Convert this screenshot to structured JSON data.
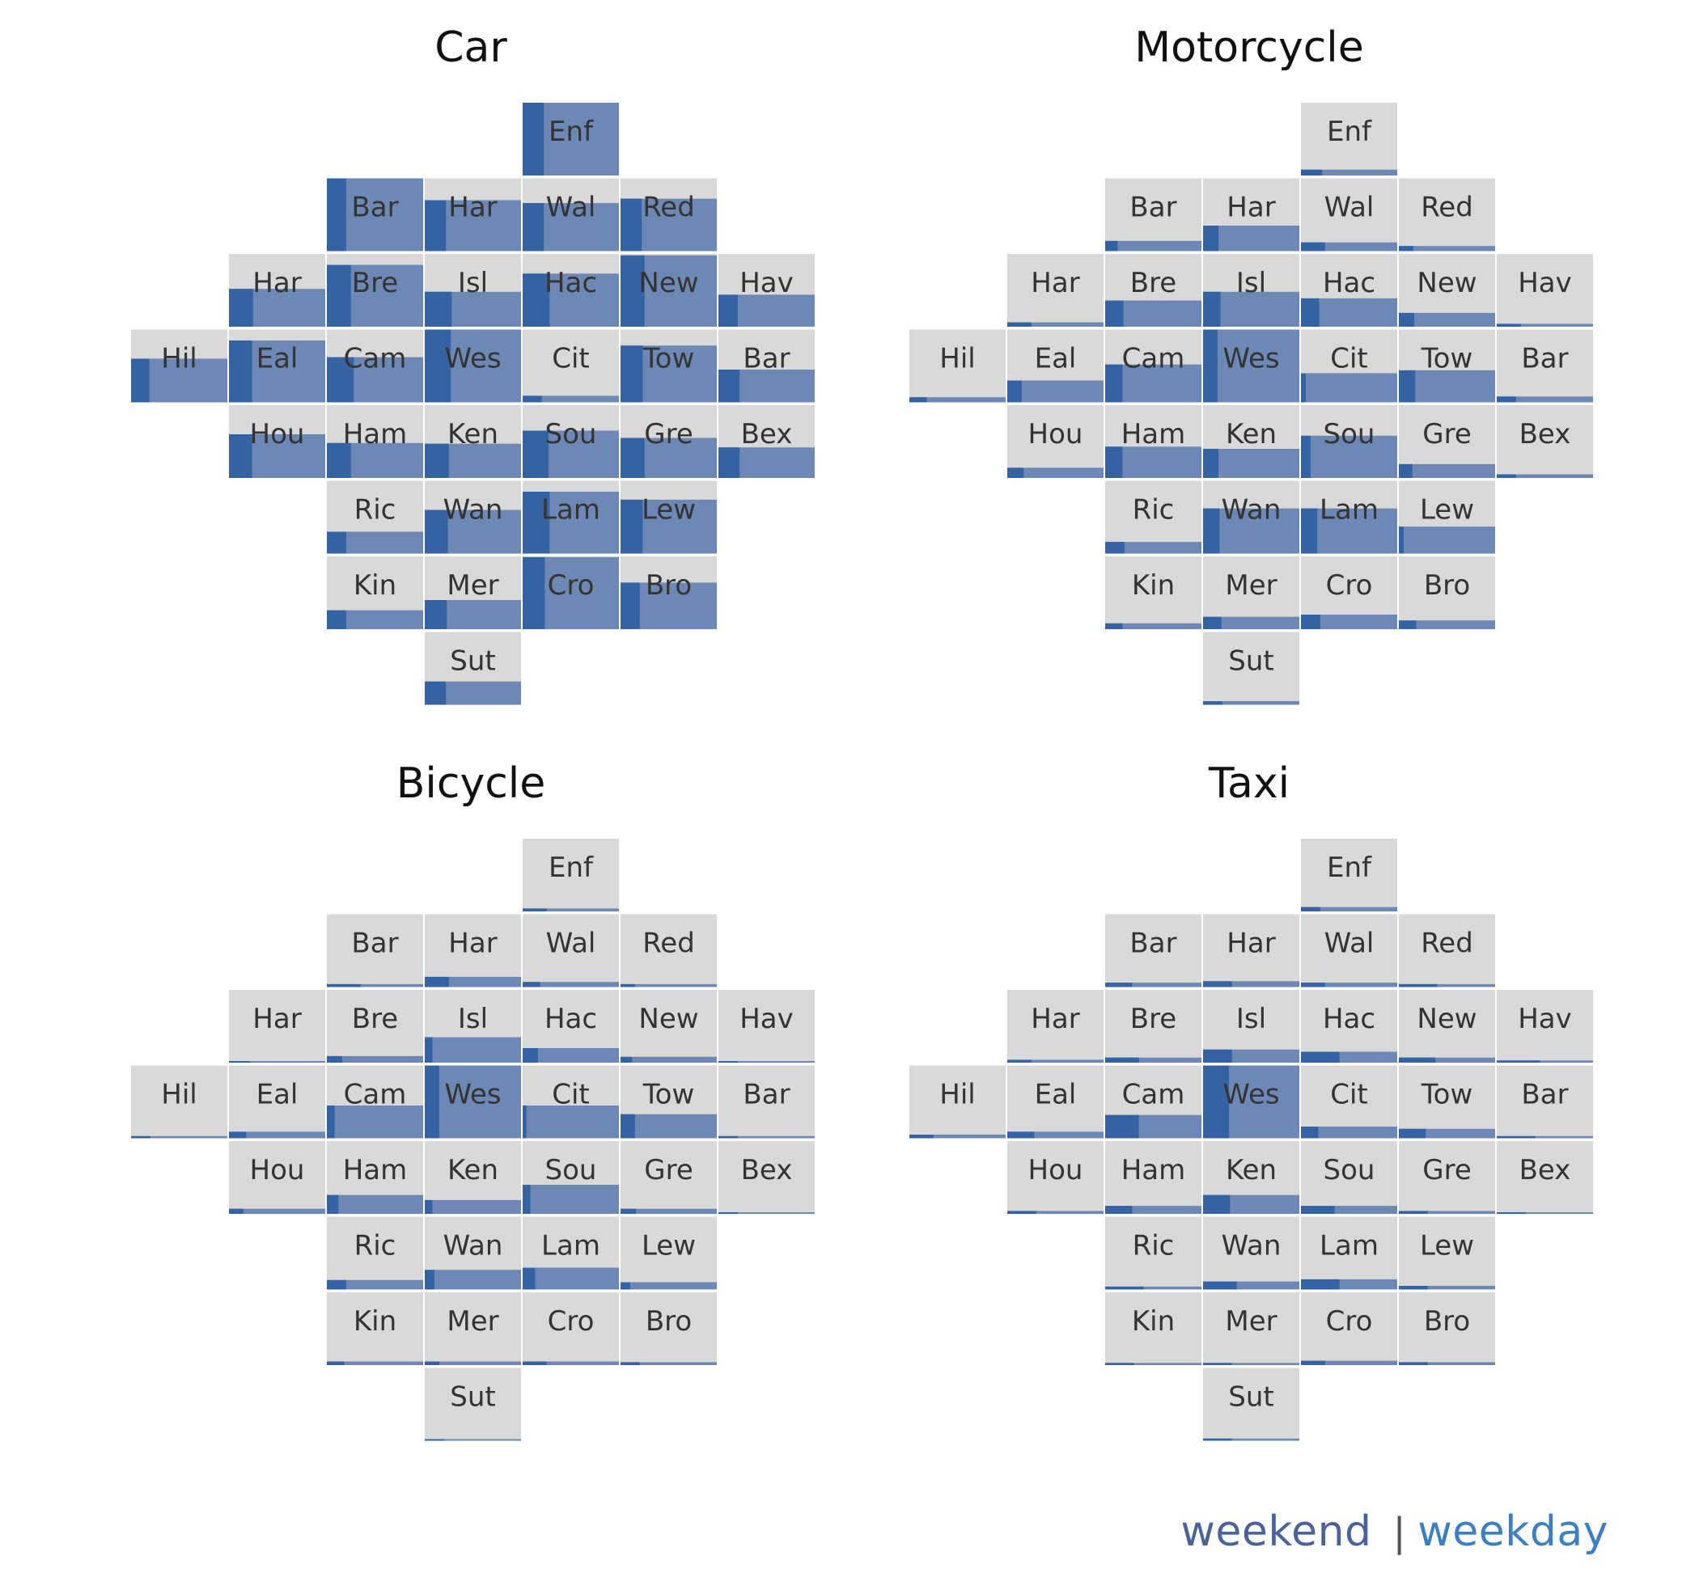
{
  "legend": {
    "weekend": "weekend",
    "separator": "|",
    "weekday": "weekday"
  },
  "colors": {
    "tile_bg": "#d9d9d9",
    "weekend": "#3562a3",
    "weekday": "#6d88b4",
    "label": "#333333"
  },
  "chart_data": [
    {
      "type": "heatmap",
      "title": "Car",
      "value_scale": "values are fraction of the tile filled (height); weekend share is fraction of filled width",
      "tiles": [
        {
          "label": "Enf",
          "col": 5,
          "row": 1,
          "value": 1.0,
          "weekend": 0.22
        },
        {
          "label": "Bar",
          "col": 3,
          "row": 2,
          "value": 1.0,
          "weekend": 0.2
        },
        {
          "label": "Har",
          "col": 4,
          "row": 2,
          "value": 0.7,
          "weekend": 0.22
        },
        {
          "label": "Wal",
          "col": 5,
          "row": 2,
          "value": 0.66,
          "weekend": 0.22
        },
        {
          "label": "Red",
          "col": 6,
          "row": 2,
          "value": 0.72,
          "weekend": 0.22
        },
        {
          "label": "Har",
          "col": 2,
          "row": 3,
          "value": 0.52,
          "weekend": 0.25
        },
        {
          "label": "Bre",
          "col": 3,
          "row": 3,
          "value": 0.85,
          "weekend": 0.25
        },
        {
          "label": "Isl",
          "col": 4,
          "row": 3,
          "value": 0.48,
          "weekend": 0.28
        },
        {
          "label": "Hac",
          "col": 5,
          "row": 3,
          "value": 0.73,
          "weekend": 0.28
        },
        {
          "label": "New",
          "col": 6,
          "row": 3,
          "value": 0.98,
          "weekend": 0.25
        },
        {
          "label": "Hav",
          "col": 7,
          "row": 3,
          "value": 0.44,
          "weekend": 0.2
        },
        {
          "label": "Hil",
          "col": 1,
          "row": 4,
          "value": 0.6,
          "weekend": 0.19
        },
        {
          "label": "Eal",
          "col": 2,
          "row": 4,
          "value": 0.85,
          "weekend": 0.24
        },
        {
          "label": "Cam",
          "col": 3,
          "row": 4,
          "value": 0.62,
          "weekend": 0.28
        },
        {
          "label": "Wes",
          "col": 4,
          "row": 4,
          "value": 1.0,
          "weekend": 0.27
        },
        {
          "label": "Cit",
          "col": 5,
          "row": 4,
          "value": 0.09,
          "weekend": 0.2
        },
        {
          "label": "Tow",
          "col": 6,
          "row": 4,
          "value": 0.78,
          "weekend": 0.23
        },
        {
          "label": "Bar",
          "col": 7,
          "row": 4,
          "value": 0.45,
          "weekend": 0.22
        },
        {
          "label": "Hou",
          "col": 2,
          "row": 5,
          "value": 0.6,
          "weekend": 0.24
        },
        {
          "label": "Ham",
          "col": 3,
          "row": 5,
          "value": 0.48,
          "weekend": 0.25
        },
        {
          "label": "Ken",
          "col": 4,
          "row": 5,
          "value": 0.47,
          "weekend": 0.25
        },
        {
          "label": "Sou",
          "col": 5,
          "row": 5,
          "value": 0.65,
          "weekend": 0.27
        },
        {
          "label": "Gre",
          "col": 6,
          "row": 5,
          "value": 0.55,
          "weekend": 0.25
        },
        {
          "label": "Bex",
          "col": 7,
          "row": 5,
          "value": 0.42,
          "weekend": 0.22
        },
        {
          "label": "Ric",
          "col": 3,
          "row": 6,
          "value": 0.3,
          "weekend": 0.2
        },
        {
          "label": "Wan",
          "col": 4,
          "row": 6,
          "value": 0.6,
          "weekend": 0.24
        },
        {
          "label": "Lam",
          "col": 5,
          "row": 6,
          "value": 0.85,
          "weekend": 0.28
        },
        {
          "label": "Lew",
          "col": 6,
          "row": 6,
          "value": 0.74,
          "weekend": 0.23
        },
        {
          "label": "Kin",
          "col": 3,
          "row": 7,
          "value": 0.26,
          "weekend": 0.2
        },
        {
          "label": "Mer",
          "col": 4,
          "row": 7,
          "value": 0.4,
          "weekend": 0.23
        },
        {
          "label": "Cro",
          "col": 5,
          "row": 7,
          "value": 0.99,
          "weekend": 0.23
        },
        {
          "label": "Bro",
          "col": 6,
          "row": 7,
          "value": 0.64,
          "weekend": 0.2
        },
        {
          "label": "Sut",
          "col": 4,
          "row": 8,
          "value": 0.32,
          "weekend": 0.22
        }
      ]
    },
    {
      "type": "heatmap",
      "title": "Motorcycle",
      "tiles": [
        {
          "label": "Enf",
          "col": 5,
          "row": 1,
          "value": 0.08,
          "weekend": 0.22
        },
        {
          "label": "Bar",
          "col": 3,
          "row": 2,
          "value": 0.14,
          "weekend": 0.13
        },
        {
          "label": "Har",
          "col": 4,
          "row": 2,
          "value": 0.35,
          "weekend": 0.16
        },
        {
          "label": "Wal",
          "col": 5,
          "row": 2,
          "value": 0.12,
          "weekend": 0.25
        },
        {
          "label": "Red",
          "col": 6,
          "row": 2,
          "value": 0.07,
          "weekend": 0.15
        },
        {
          "label": "Har",
          "col": 2,
          "row": 3,
          "value": 0.06,
          "weekend": 0.25
        },
        {
          "label": "Bre",
          "col": 3,
          "row": 3,
          "value": 0.36,
          "weekend": 0.19
        },
        {
          "label": "Isl",
          "col": 4,
          "row": 3,
          "value": 0.48,
          "weekend": 0.18
        },
        {
          "label": "Hac",
          "col": 5,
          "row": 3,
          "value": 0.39,
          "weekend": 0.19
        },
        {
          "label": "New",
          "col": 6,
          "row": 3,
          "value": 0.19,
          "weekend": 0.16
        },
        {
          "label": "Hav",
          "col": 7,
          "row": 3,
          "value": 0.04,
          "weekend": 0.25
        },
        {
          "label": "Hil",
          "col": 1,
          "row": 4,
          "value": 0.07,
          "weekend": 0.18
        },
        {
          "label": "Eal",
          "col": 2,
          "row": 4,
          "value": 0.3,
          "weekend": 0.15
        },
        {
          "label": "Cam",
          "col": 3,
          "row": 4,
          "value": 0.52,
          "weekend": 0.18
        },
        {
          "label": "Wes",
          "col": 4,
          "row": 4,
          "value": 1.0,
          "weekend": 0.15
        },
        {
          "label": "Cit",
          "col": 5,
          "row": 4,
          "value": 0.4,
          "weekend": 0.05
        },
        {
          "label": "Tow",
          "col": 6,
          "row": 4,
          "value": 0.44,
          "weekend": 0.17
        },
        {
          "label": "Bar",
          "col": 7,
          "row": 4,
          "value": 0.08,
          "weekend": 0.2
        },
        {
          "label": "Hou",
          "col": 2,
          "row": 5,
          "value": 0.14,
          "weekend": 0.17
        },
        {
          "label": "Ham",
          "col": 3,
          "row": 5,
          "value": 0.43,
          "weekend": 0.18
        },
        {
          "label": "Ken",
          "col": 4,
          "row": 5,
          "value": 0.4,
          "weekend": 0.16
        },
        {
          "label": "Sou",
          "col": 5,
          "row": 5,
          "value": 0.58,
          "weekend": 0.1
        },
        {
          "label": "Gre",
          "col": 6,
          "row": 5,
          "value": 0.19,
          "weekend": 0.14
        },
        {
          "label": "Bex",
          "col": 7,
          "row": 5,
          "value": 0.05,
          "weekend": 0.2
        },
        {
          "label": "Ric",
          "col": 3,
          "row": 6,
          "value": 0.16,
          "weekend": 0.2
        },
        {
          "label": "Wan",
          "col": 4,
          "row": 6,
          "value": 0.62,
          "weekend": 0.17
        },
        {
          "label": "Lam",
          "col": 5,
          "row": 6,
          "value": 0.62,
          "weekend": 0.17
        },
        {
          "label": "Lew",
          "col": 6,
          "row": 6,
          "value": 0.37,
          "weekend": 0.05
        },
        {
          "label": "Kin",
          "col": 3,
          "row": 7,
          "value": 0.08,
          "weekend": 0.18
        },
        {
          "label": "Mer",
          "col": 4,
          "row": 7,
          "value": 0.17,
          "weekend": 0.19
        },
        {
          "label": "Cro",
          "col": 5,
          "row": 7,
          "value": 0.2,
          "weekend": 0.2
        },
        {
          "label": "Bro",
          "col": 6,
          "row": 7,
          "value": 0.12,
          "weekend": 0.18
        },
        {
          "label": "Sut",
          "col": 4,
          "row": 8,
          "value": 0.05,
          "weekend": 0.2
        }
      ]
    },
    {
      "type": "heatmap",
      "title": "Bicycle",
      "tiles": [
        {
          "label": "Enf",
          "col": 5,
          "row": 1,
          "value": 0.04,
          "weekend": 0.25
        },
        {
          "label": "Bar",
          "col": 3,
          "row": 2,
          "value": 0.04,
          "weekend": 0.35
        },
        {
          "label": "Har",
          "col": 4,
          "row": 2,
          "value": 0.14,
          "weekend": 0.25
        },
        {
          "label": "Wal",
          "col": 5,
          "row": 2,
          "value": 0.07,
          "weekend": 0.18
        },
        {
          "label": "Red",
          "col": 6,
          "row": 2,
          "value": 0.04,
          "weekend": 0.15
        },
        {
          "label": "Har",
          "col": 2,
          "row": 3,
          "value": 0.02,
          "weekend": 0.22
        },
        {
          "label": "Bre",
          "col": 3,
          "row": 3,
          "value": 0.09,
          "weekend": 0.16
        },
        {
          "label": "Isl",
          "col": 4,
          "row": 3,
          "value": 0.35,
          "weekend": 0.08
        },
        {
          "label": "Hac",
          "col": 5,
          "row": 3,
          "value": 0.2,
          "weekend": 0.16
        },
        {
          "label": "New",
          "col": 6,
          "row": 3,
          "value": 0.08,
          "weekend": 0.12
        },
        {
          "label": "Hav",
          "col": 7,
          "row": 3,
          "value": 0.0,
          "weekend": 0.2
        },
        {
          "label": "Hil",
          "col": 1,
          "row": 4,
          "value": 0.03,
          "weekend": 0.2
        },
        {
          "label": "Eal",
          "col": 2,
          "row": 4,
          "value": 0.09,
          "weekend": 0.18
        },
        {
          "label": "Cam",
          "col": 3,
          "row": 4,
          "value": 0.45,
          "weekend": 0.08
        },
        {
          "label": "Wes",
          "col": 4,
          "row": 4,
          "value": 1.0,
          "weekend": 0.15
        },
        {
          "label": "Cit",
          "col": 5,
          "row": 4,
          "value": 0.45,
          "weekend": 0.04
        },
        {
          "label": "Tow",
          "col": 6,
          "row": 4,
          "value": 0.33,
          "weekend": 0.15
        },
        {
          "label": "Bar",
          "col": 7,
          "row": 4,
          "value": 0.03,
          "weekend": 0.2
        },
        {
          "label": "Hou",
          "col": 2,
          "row": 5,
          "value": 0.07,
          "weekend": 0.15
        },
        {
          "label": "Ham",
          "col": 3,
          "row": 5,
          "value": 0.26,
          "weekend": 0.12
        },
        {
          "label": "Ken",
          "col": 4,
          "row": 5,
          "value": 0.19,
          "weekend": 0.08
        },
        {
          "label": "Sou",
          "col": 5,
          "row": 5,
          "value": 0.4,
          "weekend": 0.08
        },
        {
          "label": "Gre",
          "col": 6,
          "row": 5,
          "value": 0.07,
          "weekend": 0.16
        },
        {
          "label": "Bex",
          "col": 7,
          "row": 5,
          "value": 0.0,
          "weekend": 0.2
        },
        {
          "label": "Ric",
          "col": 3,
          "row": 6,
          "value": 0.13,
          "weekend": 0.2
        },
        {
          "label": "Wan",
          "col": 4,
          "row": 6,
          "value": 0.27,
          "weekend": 0.1
        },
        {
          "label": "Lam",
          "col": 5,
          "row": 6,
          "value": 0.3,
          "weekend": 0.13
        },
        {
          "label": "Lew",
          "col": 6,
          "row": 6,
          "value": 0.1,
          "weekend": 0.1
        },
        {
          "label": "Kin",
          "col": 3,
          "row": 7,
          "value": 0.05,
          "weekend": 0.18
        },
        {
          "label": "Mer",
          "col": 4,
          "row": 7,
          "value": 0.05,
          "weekend": 0.15
        },
        {
          "label": "Cro",
          "col": 5,
          "row": 7,
          "value": 0.05,
          "weekend": 0.25
        },
        {
          "label": "Bro",
          "col": 6,
          "row": 7,
          "value": 0.04,
          "weekend": 0.2
        },
        {
          "label": "Sut",
          "col": 4,
          "row": 8,
          "value": 0.02,
          "weekend": 0.2
        }
      ]
    },
    {
      "type": "heatmap",
      "title": "Taxi",
      "tiles": [
        {
          "label": "Enf",
          "col": 5,
          "row": 1,
          "value": 0.06,
          "weekend": 0.2
        },
        {
          "label": "Bar",
          "col": 3,
          "row": 2,
          "value": 0.06,
          "weekend": 0.28
        },
        {
          "label": "Har",
          "col": 4,
          "row": 2,
          "value": 0.08,
          "weekend": 0.3
        },
        {
          "label": "Wal",
          "col": 5,
          "row": 2,
          "value": 0.06,
          "weekend": 0.25
        },
        {
          "label": "Red",
          "col": 6,
          "row": 2,
          "value": 0.04,
          "weekend": 0.4
        },
        {
          "label": "Har",
          "col": 2,
          "row": 3,
          "value": 0.04,
          "weekend": 0.25
        },
        {
          "label": "Bre",
          "col": 3,
          "row": 3,
          "value": 0.07,
          "weekend": 0.35
        },
        {
          "label": "Isl",
          "col": 4,
          "row": 3,
          "value": 0.18,
          "weekend": 0.3
        },
        {
          "label": "Hac",
          "col": 5,
          "row": 3,
          "value": 0.15,
          "weekend": 0.4
        },
        {
          "label": "New",
          "col": 6,
          "row": 3,
          "value": 0.07,
          "weekend": 0.38
        },
        {
          "label": "Hav",
          "col": 7,
          "row": 3,
          "value": 0.03,
          "weekend": 0.45
        },
        {
          "label": "Hil",
          "col": 1,
          "row": 4,
          "value": 0.05,
          "weekend": 0.25
        },
        {
          "label": "Eal",
          "col": 2,
          "row": 4,
          "value": 0.09,
          "weekend": 0.28
        },
        {
          "label": "Cam",
          "col": 3,
          "row": 4,
          "value": 0.32,
          "weekend": 0.35
        },
        {
          "label": "Wes",
          "col": 4,
          "row": 4,
          "value": 1.0,
          "weekend": 0.27
        },
        {
          "label": "Cit",
          "col": 5,
          "row": 4,
          "value": 0.16,
          "weekend": 0.18
        },
        {
          "label": "Tow",
          "col": 6,
          "row": 4,
          "value": 0.13,
          "weekend": 0.28
        },
        {
          "label": "Bar",
          "col": 7,
          "row": 4,
          "value": 0.03,
          "weekend": 0.4
        },
        {
          "label": "Hou",
          "col": 2,
          "row": 5,
          "value": 0.04,
          "weekend": 0.3
        },
        {
          "label": "Ham",
          "col": 3,
          "row": 5,
          "value": 0.11,
          "weekend": 0.28
        },
        {
          "label": "Ken",
          "col": 4,
          "row": 5,
          "value": 0.26,
          "weekend": 0.28
        },
        {
          "label": "Sou",
          "col": 5,
          "row": 5,
          "value": 0.11,
          "weekend": 0.35
        },
        {
          "label": "Gre",
          "col": 6,
          "row": 5,
          "value": 0.04,
          "weekend": 0.3
        },
        {
          "label": "Bex",
          "col": 7,
          "row": 5,
          "value": 0.02,
          "weekend": 0.3
        },
        {
          "label": "Ric",
          "col": 3,
          "row": 6,
          "value": 0.04,
          "weekend": 0.4
        },
        {
          "label": "Wan",
          "col": 4,
          "row": 6,
          "value": 0.11,
          "weekend": 0.35
        },
        {
          "label": "Lam",
          "col": 5,
          "row": 6,
          "value": 0.14,
          "weekend": 0.4
        },
        {
          "label": "Lew",
          "col": 6,
          "row": 6,
          "value": 0.05,
          "weekend": 0.3
        },
        {
          "label": "Kin",
          "col": 3,
          "row": 7,
          "value": 0.03,
          "weekend": 0.3
        },
        {
          "label": "Mer",
          "col": 4,
          "row": 7,
          "value": 0.03,
          "weekend": 0.3
        },
        {
          "label": "Cro",
          "col": 5,
          "row": 7,
          "value": 0.06,
          "weekend": 0.25
        },
        {
          "label": "Bro",
          "col": 6,
          "row": 7,
          "value": 0.04,
          "weekend": 0.3
        },
        {
          "label": "Sut",
          "col": 4,
          "row": 8,
          "value": 0.03,
          "weekend": 0.3
        }
      ]
    }
  ]
}
